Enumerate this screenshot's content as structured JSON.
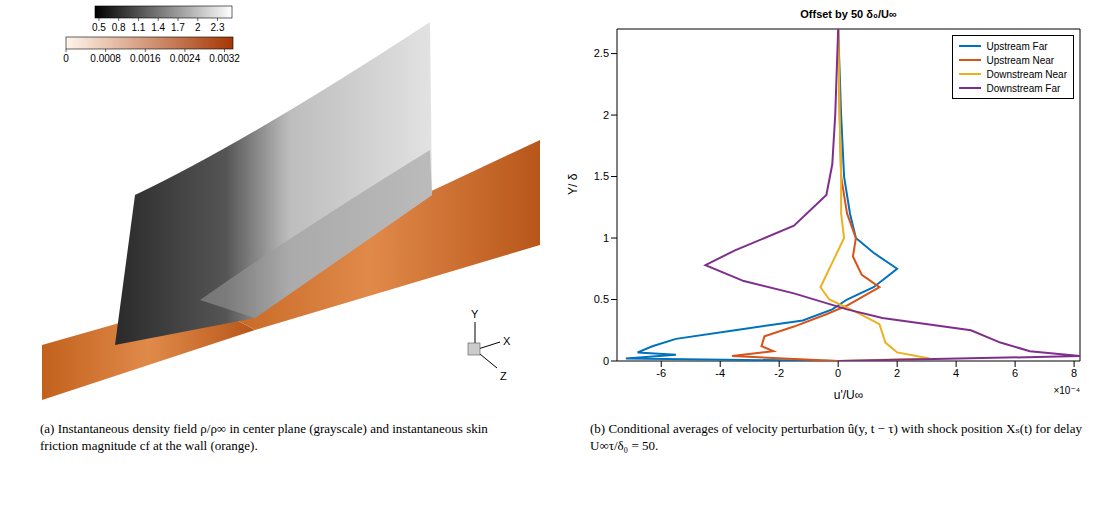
{
  "panel_a": {
    "colorbars": [
      {
        "range": [
          0.44,
          2.52
        ],
        "ticks": [
          0.5,
          0.8,
          1.1,
          1.4,
          1.7,
          2,
          2.3
        ]
      },
      {
        "range": [
          0,
          0.00337
        ],
        "ticks": [
          0,
          0.0008,
          0.0016,
          0.0024,
          0.0032
        ]
      }
    ],
    "axis_labels": [
      "X",
      "Y",
      "Z"
    ],
    "caption": "(a) Instantaneous density field ρ/ρ∞ in center plane (grayscale) and instantaneous skin friction magnitude cf at the wall (orange)."
  },
  "chart_data": {
    "type": "line",
    "title": "Offset by 50  δ₀/U∞",
    "x_label": "u'/U∞",
    "x_exponent": "×10⁻⁴",
    "y_label": "Y/ δ",
    "xlim": [
      -7.5,
      8.2
    ],
    "xticks": [
      -6,
      -4,
      -2,
      0,
      2,
      4,
      6,
      8
    ],
    "ylim": [
      0,
      2.7
    ],
    "yticks": [
      0,
      0.5,
      1,
      1.5,
      2,
      2.5
    ],
    "legend": "upper right",
    "grid": false,
    "series": [
      {
        "name": "Upstream Far",
        "color": "#0072BD",
        "x": [
          0,
          -7.2,
          -5.5,
          -6.8,
          -6.3,
          -5.5,
          -3.5,
          -1.2,
          -0.2,
          0.3,
          1.2,
          2.0,
          1.2,
          0.6,
          0.4,
          0.2,
          0.1,
          0.0
        ],
        "values": [
          0,
          0.02,
          0.05,
          0.07,
          0.12,
          0.18,
          0.25,
          0.33,
          0.42,
          0.5,
          0.6,
          0.75,
          0.88,
          1.0,
          1.2,
          1.5,
          2.0,
          2.7
        ]
      },
      {
        "name": "Upstream Near",
        "color": "#D95319",
        "x": [
          0,
          -3.6,
          -2.2,
          -2.6,
          -2.5,
          -1.5,
          -0.4,
          0.3,
          1.4,
          0.8,
          0.5,
          0.6,
          0.3,
          0.1,
          0.05,
          0.0
        ],
        "values": [
          0,
          0.04,
          0.08,
          0.12,
          0.2,
          0.28,
          0.38,
          0.45,
          0.6,
          0.7,
          0.85,
          1.0,
          1.2,
          1.5,
          2.0,
          2.7
        ]
      },
      {
        "name": "Downstream Near",
        "color": "#EDB120",
        "x": [
          0,
          3.1,
          2.0,
          1.6,
          1.4,
          0.6,
          -0.3,
          -0.6,
          -0.2,
          0.2,
          0.1,
          0.1,
          0.05,
          0.0
        ],
        "values": [
          0,
          0.02,
          0.07,
          0.15,
          0.3,
          0.4,
          0.5,
          0.6,
          0.8,
          1.0,
          1.2,
          1.5,
          2.0,
          2.7
        ]
      },
      {
        "name": "Downstream Far",
        "color": "#7E2F8E",
        "x": [
          0,
          8.2,
          6.5,
          5.5,
          4.5,
          1.5,
          0.3,
          -1.5,
          -3.2,
          -4.5,
          -3.5,
          -1.5,
          -0.4,
          -0.2,
          -0.1,
          0.0
        ],
        "values": [
          0,
          0.04,
          0.08,
          0.15,
          0.25,
          0.35,
          0.42,
          0.55,
          0.65,
          0.78,
          0.9,
          1.1,
          1.35,
          1.6,
          2.0,
          2.7
        ]
      }
    ]
  },
  "panel_b_caption": "(b) Conditional averages of velocity perturbation û(y, t − τ) with shock position Xₛ(t) for delay U∞τ/δ₀ = 50."
}
